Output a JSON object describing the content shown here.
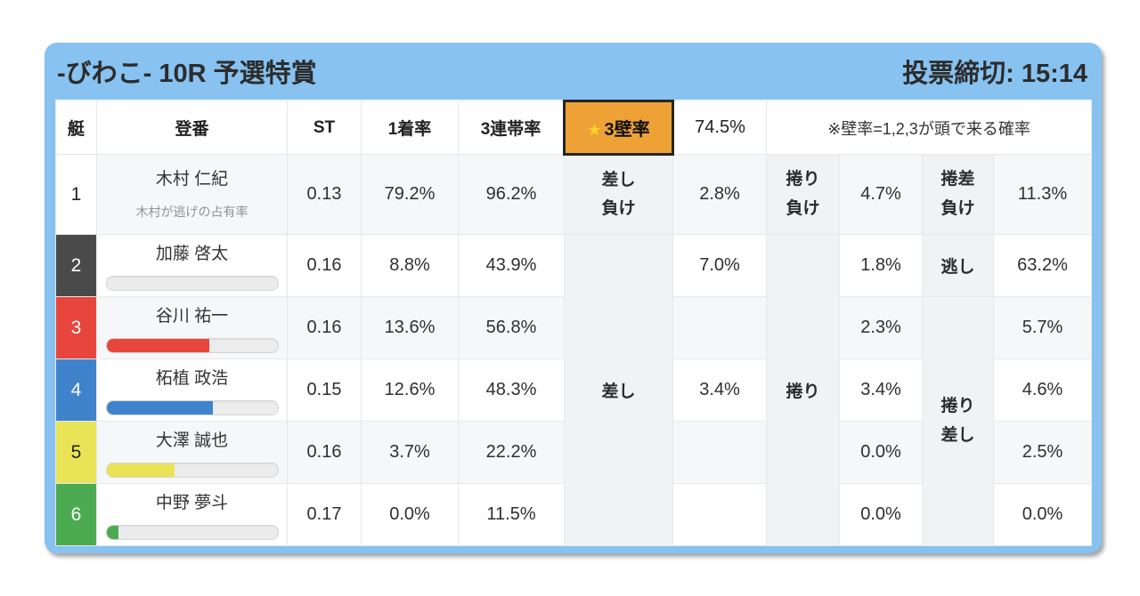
{
  "header": {
    "venue_race": "-びわこ- 10R 予選特賞",
    "deadline": "投票締切: 15:14"
  },
  "colors": {
    "panel_blue": "#87c2f0",
    "accent_orange": "#eea236",
    "star_yellow": "#ffd22e",
    "boat": {
      "1": "#ffffff",
      "2": "#4a4a4b",
      "3": "#e8453c",
      "4": "#3f83cc",
      "5": "#e9e457",
      "6": "#4cab51"
    }
  },
  "table": {
    "headers": {
      "boat": "艇",
      "reg": "登番",
      "st": "ST",
      "win1": "1着率",
      "top3": "3連帯率",
      "wall3_star": "★",
      "wall3": "3壁率",
      "wall3_value": "74.5%",
      "note": "※壁率=1,2,3が頭で来る確率"
    },
    "rows": [
      {
        "boat": "1",
        "name": "木村 仁紀",
        "sub": "木村が逃げの占有率",
        "st": "0.13",
        "win1": "79.2%",
        "top3": "96.2%"
      },
      {
        "boat": "2",
        "name": "加藤 啓太",
        "st": "0.16",
        "win1": "8.8%",
        "top3": "43.9%",
        "bar": {
          "percent": 0,
          "color": "#4a4a4b"
        }
      },
      {
        "boat": "3",
        "name": "谷川 祐一",
        "st": "0.16",
        "win1": "13.6%",
        "top3": "56.8%",
        "bar": {
          "percent": 60,
          "color": "#e8453c"
        }
      },
      {
        "boat": "4",
        "name": "柘植 政浩",
        "st": "0.15",
        "win1": "12.6%",
        "top3": "48.3%",
        "bar": {
          "percent": 62,
          "color": "#3f83cc"
        }
      },
      {
        "boat": "5",
        "name": "大澤 誠也",
        "st": "0.16",
        "win1": "3.7%",
        "top3": "22.2%",
        "bar": {
          "percent": 40,
          "color": "#e9e457"
        }
      },
      {
        "boat": "6",
        "name": "中野 夢斗",
        "st": "0.17",
        "win1": "0.0%",
        "top3": "11.5%",
        "bar": {
          "percent": 7,
          "color": "#4cab51"
        }
      }
    ],
    "kimarite": {
      "r1": {
        "a1": "差し",
        "a2": "負け",
        "av": "2.8%",
        "c1": "捲り",
        "c2": "負け",
        "cv": "4.7%",
        "e1": "捲差",
        "e2": "負け",
        "ev": "11.3%"
      },
      "sashi": "差し",
      "makuri": "捲り",
      "nigashi": "逃し",
      "makurizashi1": "捲り",
      "makurizashi2": "差し",
      "b": {
        "r2": "7.0%",
        "r4": "3.4%"
      },
      "d": {
        "r2": "1.8%",
        "r3": "2.3%",
        "r4": "3.4%",
        "r5": "0.0%",
        "r6": "0.0%"
      },
      "f": {
        "r2": "63.2%",
        "r3": "5.7%",
        "r4": "4.6%",
        "r5": "2.5%",
        "r6": "0.0%"
      }
    }
  }
}
